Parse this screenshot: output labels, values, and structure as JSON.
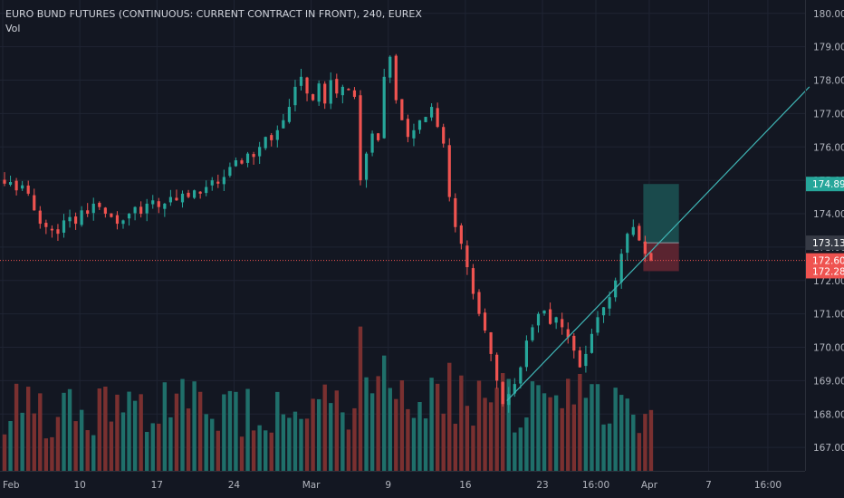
{
  "legend": {
    "symbol_title": "EURO BUND FUTURES (CONTINUOUS: CURRENT CONTRACT IN FRONT), 240, EUREX",
    "indicator": "Vol"
  },
  "colors": {
    "background": "#131722",
    "grid": "#1f2433",
    "axis_text": "#b2b5be",
    "up": "#26a69a",
    "down": "#ef5350",
    "volume_up": "#1f6f6a",
    "volume_down": "#7a3030",
    "trendline": "#3fb5b5",
    "last_price_line": "#ef5350",
    "target_zone": "#1a4a4c",
    "stop_zone": "#5a2430",
    "target_label_bg": "#26a69a",
    "entry_label_bg": "#363a45",
    "stop_label_bg": "#ef5350"
  },
  "chart_data": {
    "type": "candlestick",
    "instrument": "EURO BUND FUTURES (CONTINUOUS: CURRENT CONTRACT IN FRONT)",
    "interval": "240",
    "exchange": "EUREX",
    "y_axis": {
      "ticks": [
        "180.00",
        "179.00",
        "178.00",
        "177.00",
        "176.00",
        "175.00",
        "174.00",
        "173.00",
        "172.00",
        "171.00",
        "170.00",
        "169.00",
        "168.00",
        "167.00"
      ],
      "range": [
        166.3,
        180.4
      ]
    },
    "x_axis": {
      "ticks": [
        "Feb",
        "10",
        "17",
        "24",
        "Mar",
        "9",
        "16",
        "23",
        "16:00",
        "Apr",
        "7",
        "16:00"
      ]
    },
    "price_labels": {
      "target": "174.89",
      "entry": "173.13",
      "last": "172.60",
      "stop": "172.28"
    },
    "trendline": {
      "start": {
        "bar": 85,
        "price": 168.4
      },
      "end": {
        "bar": 136,
        "price": 177.8
      }
    },
    "position": {
      "start_bar": 108,
      "end_bar": 114,
      "target": 174.89,
      "entry": 173.13,
      "stop": 172.28
    },
    "close": [
      174.9,
      174.95,
      174.7,
      174.85,
      174.6,
      174.1,
      173.7,
      173.6,
      173.5,
      173.4,
      173.8,
      173.9,
      173.7,
      174.1,
      174.0,
      174.3,
      174.2,
      174.0,
      173.9,
      173.7,
      173.8,
      174.0,
      174.2,
      174.0,
      174.3,
      174.4,
      174.2,
      174.3,
      174.5,
      174.4,
      174.6,
      174.5,
      174.7,
      174.6,
      174.8,
      175.0,
      174.9,
      175.1,
      175.4,
      175.6,
      175.5,
      175.8,
      175.7,
      176.0,
      176.3,
      176.2,
      176.5,
      176.8,
      177.2,
      177.8,
      178.1,
      177.6,
      177.4,
      177.9,
      177.3,
      178.0,
      177.6,
      177.8,
      177.7,
      177.5,
      175.0,
      175.8,
      176.4,
      176.2,
      178.1,
      178.7,
      177.4,
      176.8,
      176.3,
      176.5,
      176.8,
      176.9,
      177.2,
      176.6,
      176.1,
      174.5,
      173.6,
      173.1,
      172.4,
      171.6,
      171.0,
      170.5,
      169.8,
      169.0,
      168.3,
      168.6,
      168.9,
      169.4,
      170.2,
      170.6,
      171.0,
      171.1,
      170.7,
      170.9,
      170.6,
      170.3,
      169.9,
      169.4,
      169.8,
      170.4,
      170.9,
      171.2,
      171.5,
      172.0,
      172.8,
      173.4,
      173.6,
      173.2,
      172.8,
      172.6
    ]
  }
}
